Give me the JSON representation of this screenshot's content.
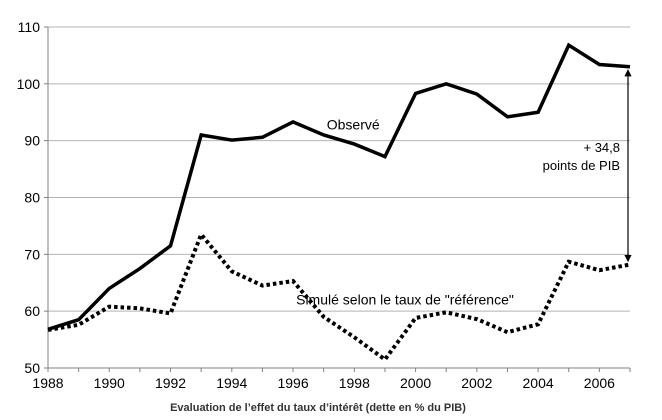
{
  "chart_data": {
    "type": "line",
    "title": "",
    "xlabel": "Evaluation de l’effet du taux d’intérêt (dette en % du PIB)",
    "ylabel": "",
    "xlim": [
      1988,
      2007
    ],
    "ylim": [
      50,
      110
    ],
    "x_ticks": [
      "1988",
      "1990",
      "1992",
      "1994",
      "1996",
      "1998",
      "2000",
      "2002",
      "2004",
      "2006"
    ],
    "y_ticks": [
      "50",
      "60",
      "70",
      "80",
      "90",
      "100",
      "110"
    ],
    "grid": "horizontal",
    "x": [
      1988,
      1989,
      1990,
      1991,
      1992,
      1993,
      1994,
      1995,
      1996,
      1997,
      1998,
      1999,
      2000,
      2001,
      2002,
      2003,
      2004,
      2005,
      2006,
      2007
    ],
    "series": [
      {
        "name": "Observé",
        "style": "solid",
        "color": "#000000",
        "values": [
          56.8,
          58.5,
          64.0,
          67.5,
          71.5,
          91.0,
          90.1,
          90.6,
          93.3,
          91.0,
          89.4,
          87.2,
          98.3,
          100.0,
          98.2,
          94.2,
          95.0,
          106.8,
          103.4,
          103.0
        ]
      },
      {
        "name": "Simulé  selon le taux de \"référence\"",
        "style": "dotted",
        "color": "#000000",
        "values": [
          56.7,
          57.6,
          60.8,
          60.5,
          59.6,
          73.5,
          67.0,
          64.5,
          65.3,
          59.0,
          55.4,
          51.5,
          58.8,
          59.8,
          58.6,
          56.3,
          57.7,
          68.7,
          67.2,
          68.2
        ]
      }
    ],
    "annotations": [
      {
        "text_line1": "+ 34,8",
        "text_line2": "points  de PIB",
        "x": 2007,
        "y_from": 68.2,
        "y_to": 103.0,
        "value": 34.8
      }
    ]
  }
}
